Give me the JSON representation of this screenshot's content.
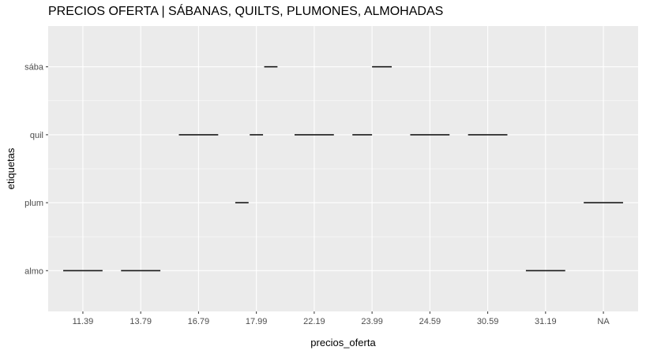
{
  "chart_data": {
    "type": "line",
    "title": "PRECIOS OFERTA | SÁBANAS, QUILTS, PLUMONES, ALMOHADAS",
    "xlabel": "precios_oferta",
    "ylabel": "etiquetas",
    "x_categories": [
      "11.39",
      "13.79",
      "16.79",
      "17.99",
      "22.19",
      "23.99",
      "24.59",
      "30.59",
      "31.19",
      "NA"
    ],
    "y_categories": [
      "almo",
      "plum",
      "quil",
      "sába"
    ],
    "segments": [
      {
        "y": "almo",
        "x": "11.39",
        "offset": 0,
        "width": 0.68
      },
      {
        "y": "almo",
        "x": "13.79",
        "offset": 0,
        "width": 0.68
      },
      {
        "y": "quil",
        "x": "16.79",
        "offset": 0,
        "width": 0.68
      },
      {
        "y": "plum",
        "x": "17.99",
        "offset": -0.25,
        "width": 0.23
      },
      {
        "y": "quil",
        "x": "17.99",
        "offset": 0,
        "width": 0.23
      },
      {
        "y": "sába",
        "x": "17.99",
        "offset": 0.25,
        "width": 0.23
      },
      {
        "y": "quil",
        "x": "22.19",
        "offset": 0,
        "width": 0.68
      },
      {
        "y": "quil",
        "x": "23.99",
        "offset": -0.17,
        "width": 0.34
      },
      {
        "y": "sába",
        "x": "23.99",
        "offset": 0.17,
        "width": 0.34
      },
      {
        "y": "quil",
        "x": "24.59",
        "offset": 0,
        "width": 0.68
      },
      {
        "y": "quil",
        "x": "30.59",
        "offset": 0,
        "width": 0.68
      },
      {
        "y": "almo",
        "x": "31.19",
        "offset": 0,
        "width": 0.68
      },
      {
        "y": "plum",
        "x": "NA",
        "offset": 0,
        "width": 0.68
      }
    ],
    "grid": true,
    "legend": "none"
  },
  "colors": {
    "panel_background": "#ebebeb",
    "grid_major": "#ffffff",
    "segment": "#1a1a1a",
    "tick_text": "#4d4d4d"
  }
}
